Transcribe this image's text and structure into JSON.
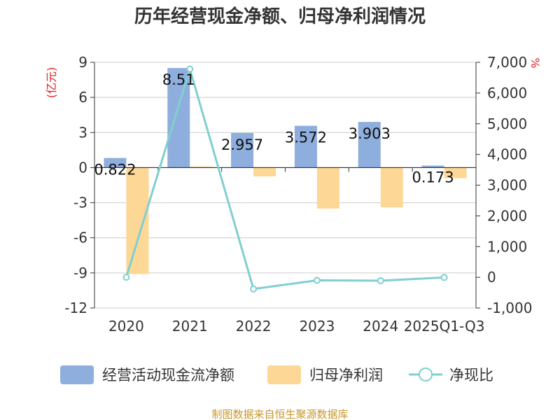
{
  "chart_data": {
    "type": "bar",
    "title": "历年经营现金净额、归母净利润情况",
    "categories": [
      "2020",
      "2021",
      "2022",
      "2023",
      "2024",
      "2025Q1-Q3"
    ],
    "series": [
      {
        "name": "经营活动现金流净额",
        "type": "bar",
        "axis": "left",
        "values": [
          0.822,
          8.51,
          2.957,
          3.572,
          3.903,
          0.173
        ]
      },
      {
        "name": "归母净利润",
        "type": "bar",
        "axis": "left",
        "values": [
          -9.1,
          0.1,
          -0.75,
          -3.5,
          -3.4,
          -0.9
        ]
      },
      {
        "name": "净现比",
        "type": "line",
        "axis": "right",
        "values": [
          0,
          6780,
          -380,
          -100,
          -110,
          -5
        ]
      }
    ],
    "data_labels": [
      "0.822",
      "8.51",
      "2.957",
      "3.572",
      "3.903",
      "0.173"
    ],
    "left_axis": {
      "unit_label": "(亿元)",
      "ylim": [
        -12,
        9
      ],
      "ticks": [
        "9",
        "6",
        "3",
        "0",
        "-3",
        "-6",
        "-9",
        "-12"
      ]
    },
    "right_axis": {
      "unit_label": "%",
      "ylim": [
        -1000,
        7000
      ],
      "ticks": [
        "7,000",
        "6,000",
        "5,000",
        "4,000",
        "3,000",
        "2,000",
        "1,000",
        "0",
        "-1,000"
      ]
    },
    "legend": {
      "position": "bottom",
      "entries": [
        "经营活动现金流净额",
        "归母净利润",
        "净现比"
      ]
    },
    "grid": true
  },
  "colors": {
    "cash_bar": "#8eaedd",
    "profit_bar": "#fdd796",
    "ratio_line": "#80cfd0"
  },
  "source_text": "制图数据来自恒生聚源数据库"
}
